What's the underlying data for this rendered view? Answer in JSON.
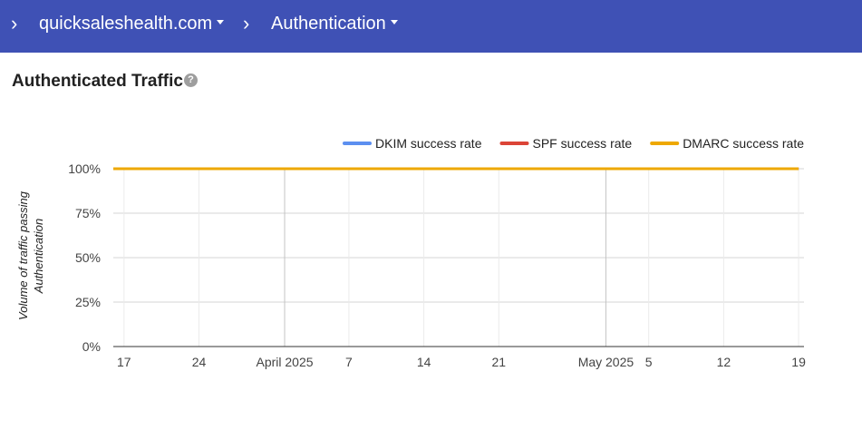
{
  "header": {
    "breadcrumbs": [
      {
        "label": "quicksaleshealth.com"
      },
      {
        "label": "Authentication"
      }
    ]
  },
  "page": {
    "title": "Authenticated Traffic",
    "help_icon": "help-circle-icon"
  },
  "colors": {
    "header_bg": "#3f51b5",
    "dkim": "#5c8ff0",
    "spf": "#db4437",
    "dmarc": "#eea800"
  },
  "chart_data": {
    "type": "line",
    "title": "",
    "ylabel": "Volume of traffic passing Authentication",
    "ylim": [
      0,
      100
    ],
    "yticks": [
      "0%",
      "25%",
      "50%",
      "75%",
      "100%"
    ],
    "x_start": "2025-03-16",
    "x_end": "2025-05-19",
    "xticks": [
      {
        "date": "2025-03-17",
        "label": "17"
      },
      {
        "date": "2025-03-24",
        "label": "24"
      },
      {
        "date": "2025-04-01",
        "label": "April 2025"
      },
      {
        "date": "2025-04-07",
        "label": "7"
      },
      {
        "date": "2025-04-14",
        "label": "14"
      },
      {
        "date": "2025-04-21",
        "label": "21"
      },
      {
        "date": "2025-05-01",
        "label": "May 2025"
      },
      {
        "date": "2025-05-05",
        "label": "5"
      },
      {
        "date": "2025-05-12",
        "label": "12"
      },
      {
        "date": "2025-05-19",
        "label": "19"
      }
    ],
    "legend_position": "top-right",
    "series": [
      {
        "name": "DKIM success rate",
        "color": "#5c8ff0",
        "x": [
          "2025-03-16",
          "2025-05-19"
        ],
        "y": [
          100,
          100
        ]
      },
      {
        "name": "SPF success rate",
        "color": "#db4437",
        "x": [
          "2025-03-16",
          "2025-05-19"
        ],
        "y": [
          100,
          100
        ]
      },
      {
        "name": "DMARC success rate",
        "color": "#eea800",
        "x": [
          "2025-03-16",
          "2025-05-19"
        ],
        "y": [
          100,
          100
        ]
      }
    ]
  }
}
